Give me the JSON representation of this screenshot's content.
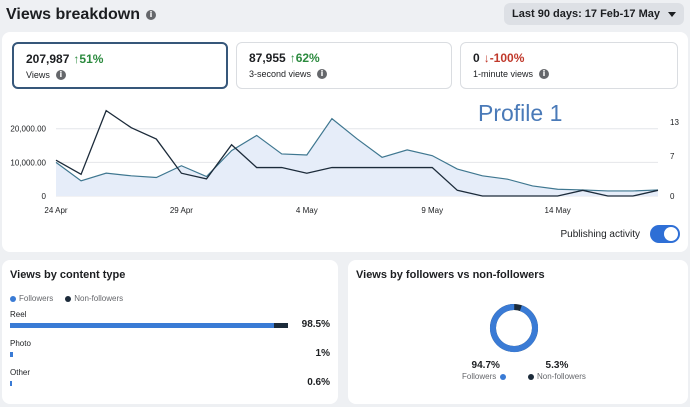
{
  "header": {
    "title": "Views breakdown",
    "date_range": "Last 90 days: 17 Feb-17 May"
  },
  "metrics": [
    {
      "value": "207,987",
      "change": "51%",
      "direction": "up",
      "label": "Views"
    },
    {
      "value": "87,955",
      "change": "62%",
      "direction": "up",
      "label": "3-second views"
    },
    {
      "value": "0",
      "change": "-100%",
      "direction": "down",
      "label": "1-minute views"
    }
  ],
  "watermark": "Profile 1",
  "chart_data": {
    "type": "line",
    "x_tick_labels": [
      "24 Apr",
      "29 Apr",
      "4 May",
      "9 May",
      "14 May"
    ],
    "y_left_ticks": [
      "0",
      "10,000.00",
      "20,000.00"
    ],
    "y_right_ticks": [
      "0",
      "7",
      "13"
    ],
    "ylim_left": [
      0,
      22000
    ],
    "ylim_right": [
      0,
      13
    ],
    "series": [
      {
        "color": "#3f7790",
        "fill": "#e6edf9",
        "axis": "left",
        "values": [
          10000,
          4500,
          6800,
          6000,
          5500,
          9000,
          5800,
          13500,
          18000,
          12500,
          12200,
          23000,
          17000,
          11500,
          13700,
          12000,
          8000,
          6000,
          5000,
          3000,
          2000,
          1800,
          1500,
          1500,
          1800
        ]
      },
      {
        "color": "#1c2b3a",
        "axis": "right",
        "values": [
          6.3,
          3.8,
          15,
          12,
          10,
          4,
          3,
          9,
          5,
          5,
          4,
          5,
          5,
          5,
          5,
          5,
          1,
          0,
          0,
          0,
          0,
          1,
          0,
          0,
          1
        ]
      }
    ],
    "x_tick_index": [
      0,
      5,
      10,
      15,
      20
    ]
  },
  "toggle": {
    "label": "Publishing activity",
    "on": true
  },
  "content_type": {
    "title": "Views by content type",
    "legend": [
      "Followers",
      "Non-followers"
    ],
    "colors": {
      "followers": "#3a7bd5",
      "non_followers": "#1c2b3a"
    },
    "rows": [
      {
        "name": "Reel",
        "pct": "98.5%",
        "followers_frac": 0.935,
        "non_followers_frac": 0.05
      },
      {
        "name": "Photo",
        "pct": "1%",
        "followers_frac": 0.01,
        "non_followers_frac": 0
      },
      {
        "name": "Other",
        "pct": "0.6%",
        "followers_frac": 0.006,
        "non_followers_frac": 0
      }
    ]
  },
  "followers": {
    "title": "Views by followers vs non-followers",
    "followers_pct": "94.7%",
    "followers_label": "Followers",
    "non_followers_pct": "5.3%",
    "non_followers_label": "Non-followers",
    "followers_frac": 0.947
  }
}
